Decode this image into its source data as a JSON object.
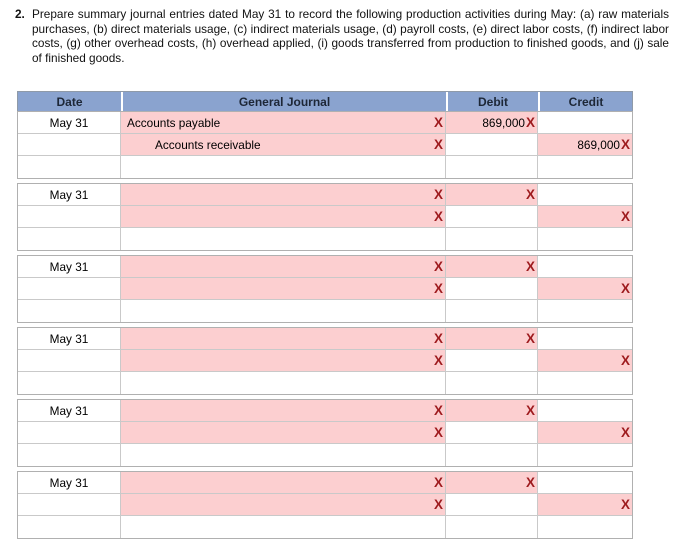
{
  "question": {
    "number": "2.",
    "text": "Prepare summary journal entries dated May 31 to record the following production activities during May: (a) raw materials purchases, (b) direct materials usage, (c) indirect materials usage, (d) payroll costs, (e) direct labor costs, (f) indirect labor costs, (g) other overhead costs, (h) overhead applied, (i) goods transferred from production to finished goods, and (j) sale of finished goods."
  },
  "table": {
    "headers": {
      "date": "Date",
      "general_journal": "General Journal",
      "debit": "Debit",
      "credit": "Credit"
    },
    "mark": {
      "glyph": "X"
    },
    "colors": {
      "header_bg": "#8AA3CF",
      "error_cell_bg": "#FCCFD0",
      "mark_color": "#9E1B1E"
    },
    "entries": [
      {
        "date": "May 31",
        "debit_line": {
          "account": "Accounts payable",
          "debit": "869,000"
        },
        "credit_line": {
          "account": "Accounts receivable",
          "credit": "869,000"
        }
      },
      {
        "date": "May 31",
        "debit_line": {
          "account": "",
          "debit": ""
        },
        "credit_line": {
          "account": "",
          "credit": ""
        }
      },
      {
        "date": "May 31",
        "debit_line": {
          "account": "",
          "debit": ""
        },
        "credit_line": {
          "account": "",
          "credit": ""
        }
      },
      {
        "date": "May 31",
        "debit_line": {
          "account": "",
          "debit": ""
        },
        "credit_line": {
          "account": "",
          "credit": ""
        }
      },
      {
        "date": "May 31",
        "debit_line": {
          "account": "",
          "debit": ""
        },
        "credit_line": {
          "account": "",
          "credit": ""
        }
      },
      {
        "date": "May 31",
        "debit_line": {
          "account": "",
          "debit": ""
        },
        "credit_line": {
          "account": "",
          "credit": ""
        }
      }
    ]
  }
}
